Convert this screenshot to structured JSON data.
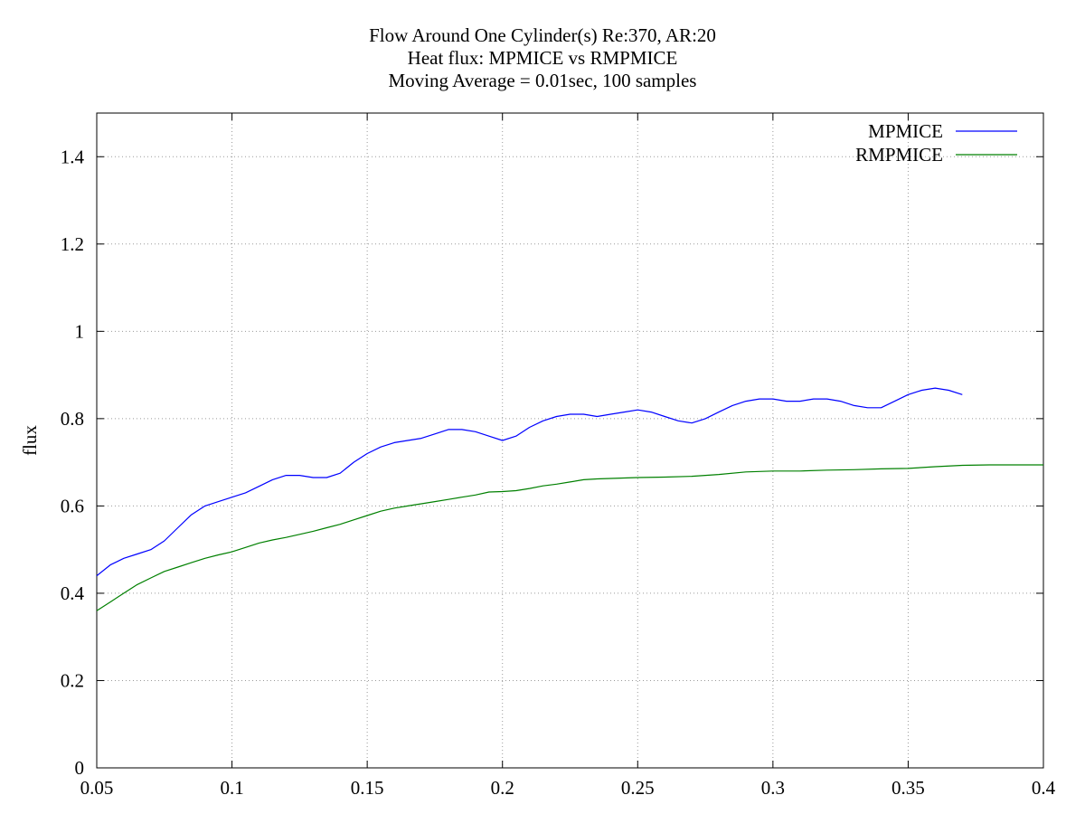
{
  "chart_data": {
    "type": "line",
    "title": "Flow Around One Cylinder(s) Re:370, AR:20",
    "subtitle": "Heat flux: MPMICE vs RMPMICE",
    "subtitle2": "Moving Average = 0.01sec, 100 samples",
    "xlabel": "",
    "ylabel": "flux",
    "xlim": [
      0.05,
      0.4
    ],
    "ylim": [
      0,
      1.5
    ],
    "xticks": [
      "0.05",
      "0.1",
      "0.15",
      "0.2",
      "0.25",
      "0.3",
      "0.35",
      "0.4"
    ],
    "yticks": [
      "0",
      "0.2",
      "0.4",
      "0.6",
      "0.8",
      "1",
      "1.2",
      "1.4"
    ],
    "grid": true,
    "legend_position": "top-right",
    "series": [
      {
        "name": "MPMICE",
        "color": "#0000ff",
        "x": [
          0.05,
          0.055,
          0.06,
          0.065,
          0.07,
          0.075,
          0.08,
          0.085,
          0.09,
          0.095,
          0.1,
          0.105,
          0.11,
          0.115,
          0.12,
          0.125,
          0.13,
          0.135,
          0.14,
          0.145,
          0.15,
          0.155,
          0.16,
          0.165,
          0.17,
          0.175,
          0.18,
          0.185,
          0.19,
          0.195,
          0.2,
          0.205,
          0.21,
          0.215,
          0.22,
          0.225,
          0.23,
          0.235,
          0.24,
          0.245,
          0.25,
          0.255,
          0.26,
          0.265,
          0.27,
          0.275,
          0.28,
          0.285,
          0.29,
          0.295,
          0.3,
          0.305,
          0.31,
          0.315,
          0.32,
          0.325,
          0.33,
          0.335,
          0.34,
          0.345,
          0.35,
          0.355,
          0.36,
          0.365,
          0.37
        ],
        "y": [
          0.44,
          0.465,
          0.48,
          0.49,
          0.5,
          0.52,
          0.55,
          0.58,
          0.6,
          0.61,
          0.62,
          0.63,
          0.645,
          0.66,
          0.67,
          0.67,
          0.665,
          0.665,
          0.675,
          0.7,
          0.72,
          0.735,
          0.745,
          0.75,
          0.755,
          0.765,
          0.775,
          0.775,
          0.77,
          0.76,
          0.75,
          0.76,
          0.78,
          0.795,
          0.805,
          0.81,
          0.81,
          0.805,
          0.81,
          0.815,
          0.82,
          0.815,
          0.805,
          0.795,
          0.79,
          0.8,
          0.815,
          0.83,
          0.84,
          0.845,
          0.845,
          0.84,
          0.84,
          0.845,
          0.845,
          0.84,
          0.83,
          0.825,
          0.825,
          0.84,
          0.855,
          0.865,
          0.87,
          0.865,
          0.855
        ]
      },
      {
        "name": "RMPMICE",
        "color": "#008000",
        "x": [
          0.05,
          0.055,
          0.06,
          0.065,
          0.07,
          0.075,
          0.08,
          0.085,
          0.09,
          0.095,
          0.1,
          0.105,
          0.11,
          0.115,
          0.12,
          0.125,
          0.13,
          0.135,
          0.14,
          0.145,
          0.15,
          0.155,
          0.16,
          0.165,
          0.17,
          0.175,
          0.18,
          0.185,
          0.19,
          0.195,
          0.2,
          0.205,
          0.21,
          0.215,
          0.22,
          0.225,
          0.23,
          0.235,
          0.24,
          0.245,
          0.25,
          0.26,
          0.27,
          0.28,
          0.29,
          0.3,
          0.31,
          0.32,
          0.33,
          0.34,
          0.35,
          0.36,
          0.37,
          0.38,
          0.39,
          0.4
        ],
        "y": [
          0.36,
          0.38,
          0.4,
          0.42,
          0.435,
          0.45,
          0.46,
          0.47,
          0.48,
          0.488,
          0.495,
          0.505,
          0.515,
          0.522,
          0.528,
          0.535,
          0.542,
          0.55,
          0.558,
          0.568,
          0.578,
          0.588,
          0.595,
          0.6,
          0.605,
          0.61,
          0.615,
          0.62,
          0.625,
          0.632,
          0.633,
          0.635,
          0.64,
          0.646,
          0.65,
          0.655,
          0.66,
          0.662,
          0.663,
          0.664,
          0.665,
          0.666,
          0.668,
          0.672,
          0.678,
          0.68,
          0.68,
          0.682,
          0.683,
          0.685,
          0.686,
          0.69,
          0.693,
          0.694,
          0.694,
          0.694
        ]
      }
    ]
  }
}
